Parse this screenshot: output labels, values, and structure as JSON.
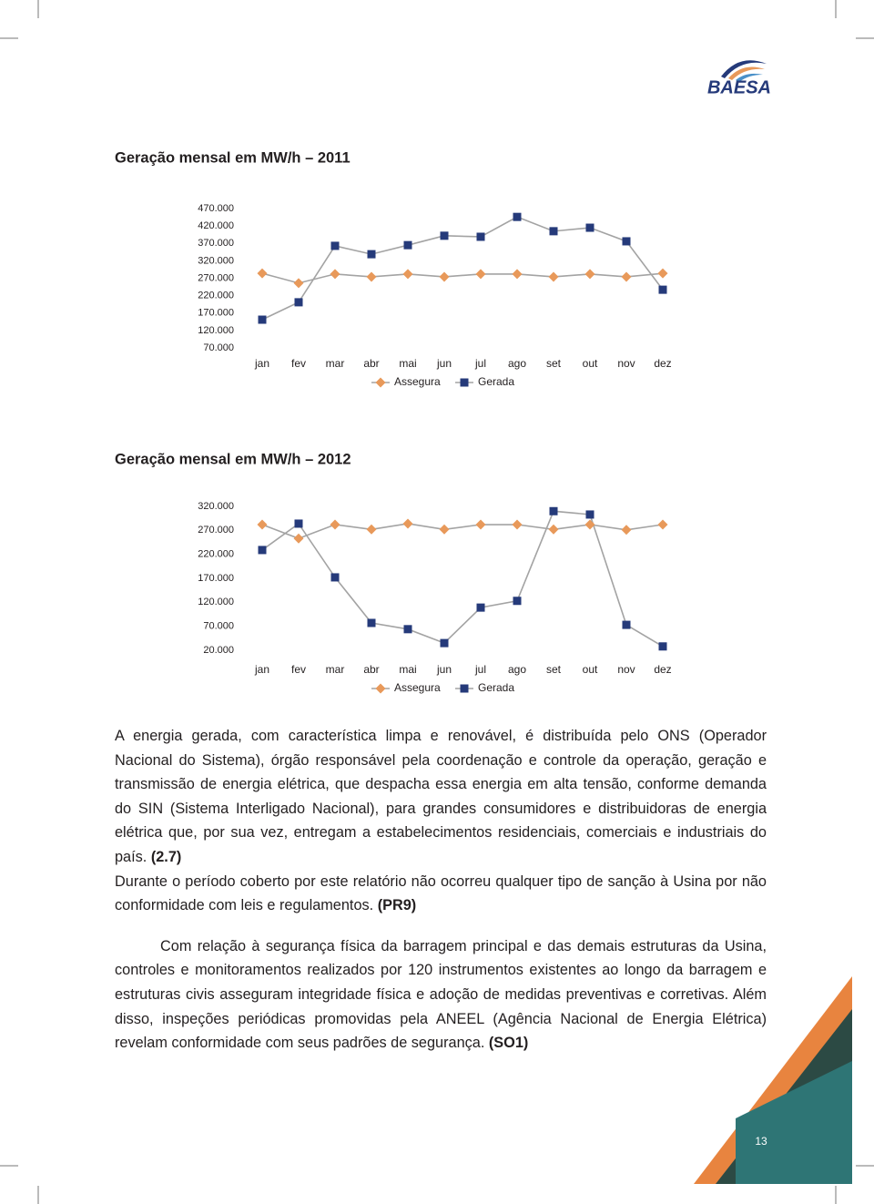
{
  "logo": {
    "text": "BAESA"
  },
  "chart_data": [
    {
      "type": "line",
      "title": "Geração mensal em MW/h – 2011",
      "categories": [
        "jan",
        "fev",
        "mar",
        "abr",
        "mai",
        "jun",
        "jul",
        "ago",
        "set",
        "out",
        "nov",
        "dez"
      ],
      "line_color": "#a3a3a3",
      "series": [
        {
          "name": "Assegura",
          "color": "#e8995a",
          "marker": "diamond",
          "values": [
            284000,
            256000,
            282000,
            274000,
            282000,
            274000,
            282000,
            282000,
            274000,
            282000,
            274000,
            284000
          ]
        },
        {
          "name": "Gerada",
          "color": "#253a7a",
          "marker": "square",
          "values": [
            151000,
            201000,
            363000,
            339000,
            365000,
            392000,
            389000,
            446000,
            405000,
            415000,
            376000,
            237000
          ]
        }
      ],
      "ylim": [
        70000,
        470000
      ],
      "yticks": [
        {
          "value": 470000,
          "label": "470.000"
        },
        {
          "value": 420000,
          "label": "420.000"
        },
        {
          "value": 370000,
          "label": "370.000"
        },
        {
          "value": 320000,
          "label": "320.000"
        },
        {
          "value": 270000,
          "label": "270.000"
        },
        {
          "value": 220000,
          "label": "220.000"
        },
        {
          "value": 170000,
          "label": "170.000"
        },
        {
          "value": 120000,
          "label": "120.000"
        },
        {
          "value": 70000,
          "label": "70.000"
        }
      ]
    },
    {
      "type": "line",
      "title": "Geração mensal em MW/h – 2012",
      "categories": [
        "jan",
        "fev",
        "mar",
        "abr",
        "mai",
        "jun",
        "jul",
        "ago",
        "set",
        "out",
        "nov",
        "dez"
      ],
      "line_color": "#a3a3a3",
      "series": [
        {
          "name": "Assegura",
          "color": "#e8995a",
          "marker": "diamond",
          "values": [
            282000,
            253000,
            282000,
            272000,
            284000,
            272000,
            282000,
            282000,
            272000,
            282000,
            271000,
            282000
          ]
        },
        {
          "name": "Gerada",
          "color": "#253a7a",
          "marker": "square",
          "values": [
            229000,
            284000,
            172000,
            77000,
            64000,
            35000,
            109000,
            123000,
            310000,
            303000,
            73000,
            28000
          ]
        }
      ],
      "ylim": [
        20000,
        320000
      ],
      "yticks": [
        {
          "value": 320000,
          "label": "320.000"
        },
        {
          "value": 270000,
          "label": "270.000"
        },
        {
          "value": 220000,
          "label": "220.000"
        },
        {
          "value": 170000,
          "label": "170.000"
        },
        {
          "value": 120000,
          "label": "120.000"
        },
        {
          "value": 70000,
          "label": "70.000"
        },
        {
          "value": 20000,
          "label": "20.000"
        }
      ]
    }
  ],
  "body": {
    "paragraphs": [
      {
        "text": "A energia gerada, com característica limpa e renovável, é distribuída pelo ONS (Operador Nacional do Sistema), órgão responsável pela coordenação e controle da operação, geração e transmissão de energia elétrica, que despacha essa energia em alta tensão, conforme demanda do SIN (Sistema Interligado Nacional), para grandes consumidores e distribuidoras de energia elétrica que, por sua vez, entregam a estabelecimentos residenciais, comerciais e industriais do país. ",
        "ref": "(2.7)"
      },
      {
        "text": "Durante o período coberto por este relatório não ocorreu qualquer tipo de sanção à Usina por não conformidade com leis e regulamentos. ",
        "ref": "(PR9)"
      },
      {
        "text": "Com relação à segurança física da barragem principal e das demais estruturas da Usina, controles e monitoramentos realizados por 120 instrumentos existentes ao longo da barragem e estruturas civis asseguram integridade física e adoção de medidas preventivas e corretivas. Além disso, inspeções periódicas promovidas pela ANEEL (Agência Nacional de Energia Elétrica) revelam conformidade com seus padrões de segurança. ",
        "ref": "(SO1)"
      }
    ]
  },
  "page_number": "13"
}
